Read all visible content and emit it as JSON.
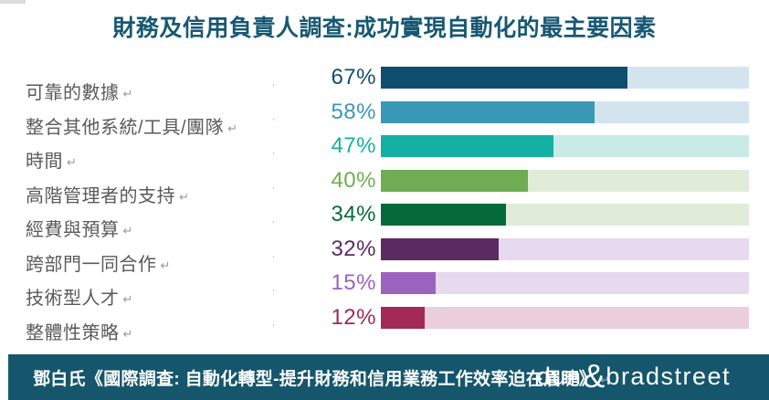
{
  "title": "財務及信用負責人調查:成功實現自動化的最主要因素",
  "return_mark": "↵",
  "chart_data": {
    "type": "bar",
    "orientation": "horizontal",
    "title": "財務及信用負責人調查:成功實現自動化的最主要因素",
    "categories": [
      "可靠的數據",
      "整合其他系統/工具/團隊",
      "時間",
      "高階管理者的支持",
      "經費與預算",
      "跨部門一同合作",
      "技術型人才",
      "整體性策略"
    ],
    "values": [
      67,
      58,
      47,
      40,
      34,
      32,
      15,
      12
    ],
    "value_suffix": "%",
    "xlim": [
      0,
      100
    ],
    "grid": false,
    "legend": false,
    "bar_colors": [
      "#0f4e6e",
      "#3a98b6",
      "#15b0a4",
      "#6fac53",
      "#046b38",
      "#5b2a63",
      "#9b62be",
      "#a22a54"
    ],
    "track_colors": [
      "#d3e4ef",
      "#d3e4ef",
      "#c9ebe5",
      "#e0ecd8",
      "#e0ecd8",
      "#e6d9f0",
      "#e6d9f0",
      "#eacfda"
    ]
  },
  "footer": {
    "source": "鄧白氏《國際調查: 自動化轉型-提升財務和信用業務工作效率迫在眉睫》",
    "background_color": "#15566c",
    "logo": {
      "part1": "dun",
      "amp": "&",
      "part2": "bradstreet"
    }
  },
  "styles": {
    "title_color": "#175873",
    "label_color": "#5a5a5a"
  }
}
